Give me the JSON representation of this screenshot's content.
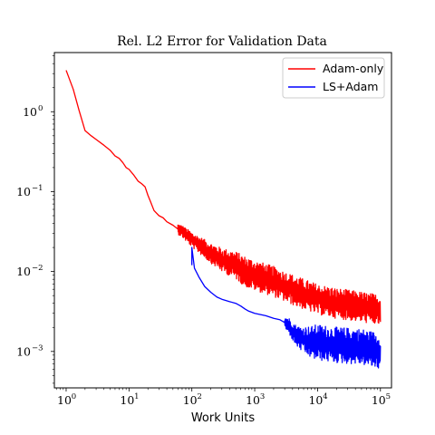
{
  "chart_data": {
    "type": "line",
    "title": "Rel. L2 Error for Validation Data",
    "xlabel": "Work Units",
    "ylabel": "",
    "xscale": "log",
    "yscale": "log",
    "xlim": [
      0.65,
      150000
    ],
    "ylim": [
      0.00035,
      5.5
    ],
    "grid": false,
    "legend_position": "top-right",
    "x_ticks": [
      {
        "value": 1,
        "base": "10",
        "exp": "0"
      },
      {
        "value": 10,
        "base": "10",
        "exp": "1"
      },
      {
        "value": 100,
        "base": "10",
        "exp": "2"
      },
      {
        "value": 1000,
        "base": "10",
        "exp": "3"
      },
      {
        "value": 10000,
        "base": "10",
        "exp": "4"
      },
      {
        "value": 100000,
        "base": "10",
        "exp": "5"
      }
    ],
    "y_ticks": [
      {
        "value": 1,
        "base": "10",
        "exp": "0"
      },
      {
        "value": 0.1,
        "base": "10",
        "exp": "−1"
      },
      {
        "value": 0.01,
        "base": "10",
        "exp": "−2"
      },
      {
        "value": 0.001,
        "base": "10",
        "exp": "−3"
      }
    ],
    "series": [
      {
        "name": "Adam-only",
        "color": "#ff0000",
        "points": [
          [
            1,
            3.3
          ],
          [
            1.3,
            1.9
          ],
          [
            1.6,
            1.05
          ],
          [
            2,
            0.58
          ],
          [
            2.5,
            0.5
          ],
          [
            3,
            0.45
          ],
          [
            4,
            0.38
          ],
          [
            5,
            0.33
          ],
          [
            6,
            0.28
          ],
          [
            7,
            0.26
          ],
          [
            8,
            0.23
          ],
          [
            9,
            0.2
          ],
          [
            10,
            0.19
          ],
          [
            12,
            0.16
          ],
          [
            14,
            0.135
          ],
          [
            16,
            0.125
          ],
          [
            18,
            0.115
          ],
          [
            20,
            0.09
          ],
          [
            22,
            0.075
          ],
          [
            25,
            0.058
          ],
          [
            30,
            0.05
          ],
          [
            35,
            0.047
          ],
          [
            40,
            0.042
          ],
          [
            50,
            0.038
          ],
          [
            60,
            0.034
          ],
          [
            70,
            0.032
          ],
          [
            80,
            0.029
          ],
          [
            90,
            0.027
          ],
          [
            100,
            0.025
          ],
          [
            150,
            0.02
          ],
          [
            200,
            0.017
          ],
          [
            300,
            0.014
          ],
          [
            500,
            0.012
          ],
          [
            700,
            0.01
          ],
          [
            1000,
            0.009
          ],
          [
            2000,
            0.0075
          ],
          [
            3000,
            0.0065
          ],
          [
            5000,
            0.0055
          ],
          [
            10000,
            0.0045
          ],
          [
            20000,
            0.004
          ],
          [
            50000,
            0.0036
          ],
          [
            100000,
            0.0033
          ]
        ],
        "noise_start": 60,
        "noise_band": 0.38
      },
      {
        "name": "LS+Adam",
        "color": "#0000ff",
        "points": [
          [
            100,
            0.012
          ],
          [
            100,
            0.02
          ],
          [
            110,
            0.011
          ],
          [
            130,
            0.0085
          ],
          [
            160,
            0.0065
          ],
          [
            200,
            0.0055
          ],
          [
            250,
            0.0048
          ],
          [
            300,
            0.0045
          ],
          [
            400,
            0.0042
          ],
          [
            500,
            0.004
          ],
          [
            600,
            0.0037
          ],
          [
            700,
            0.0034
          ],
          [
            800,
            0.0032
          ],
          [
            1000,
            0.003
          ],
          [
            1500,
            0.0028
          ],
          [
            2000,
            0.0026
          ],
          [
            2500,
            0.0025
          ],
          [
            3000,
            0.0023
          ],
          [
            3500,
            0.0021
          ],
          [
            4000,
            0.0018
          ],
          [
            4500,
            0.0016
          ],
          [
            5000,
            0.0015
          ],
          [
            6000,
            0.0014
          ],
          [
            8000,
            0.0013
          ],
          [
            10000,
            0.0013
          ],
          [
            20000,
            0.0012
          ],
          [
            50000,
            0.00115
          ],
          [
            100000,
            0.001
          ]
        ],
        "noise_start": 3000,
        "noise_band": 0.45
      }
    ]
  }
}
